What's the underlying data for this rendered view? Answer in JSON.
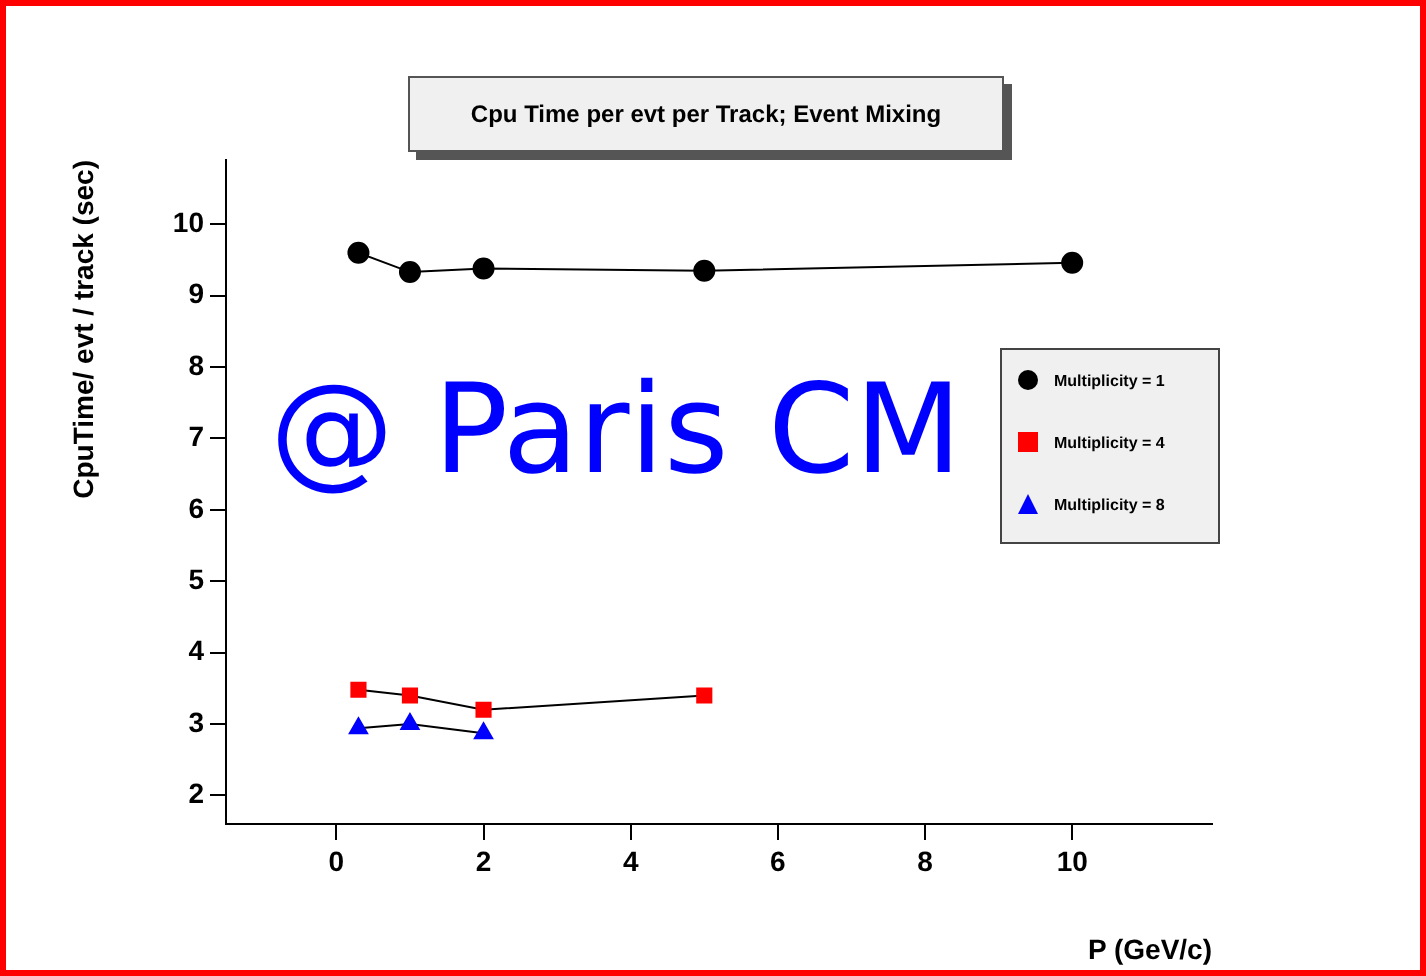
{
  "chart_data": {
    "type": "line",
    "title": "Cpu Time per evt per Track; Event Mixing",
    "xlabel": "P (GeV/c)",
    "ylabel": "CpuTime/ evt / track (sec)",
    "annotations": [
      "@ Paris CM"
    ],
    "xlim": [
      -1.5,
      11.9
    ],
    "xticks": [
      0,
      2,
      4,
      6,
      8,
      10
    ],
    "ylim": [
      1.6,
      10.9
    ],
    "yticks": [
      2,
      3,
      4,
      5,
      6,
      7,
      8,
      9,
      10
    ],
    "grid": false,
    "legend": "right",
    "line_style": "solid",
    "series": [
      {
        "name": "Multiplicity = 1",
        "color": "#000000",
        "marker": "circle",
        "x": [
          0.3,
          1,
          2,
          5,
          10
        ],
        "values": [
          9.6,
          9.33,
          9.38,
          9.35,
          9.46
        ]
      },
      {
        "name": "Multiplicity = 4",
        "color": "#ff0000",
        "marker": "square",
        "x": [
          0.3,
          1,
          2,
          5
        ],
        "values": [
          3.48,
          3.4,
          3.2,
          3.4
        ]
      },
      {
        "name": "Multiplicity = 8",
        "color": "#0000ff",
        "marker": "triangle",
        "x": [
          0.3,
          1,
          2
        ],
        "values": [
          2.94,
          3.0,
          2.87
        ]
      }
    ]
  }
}
